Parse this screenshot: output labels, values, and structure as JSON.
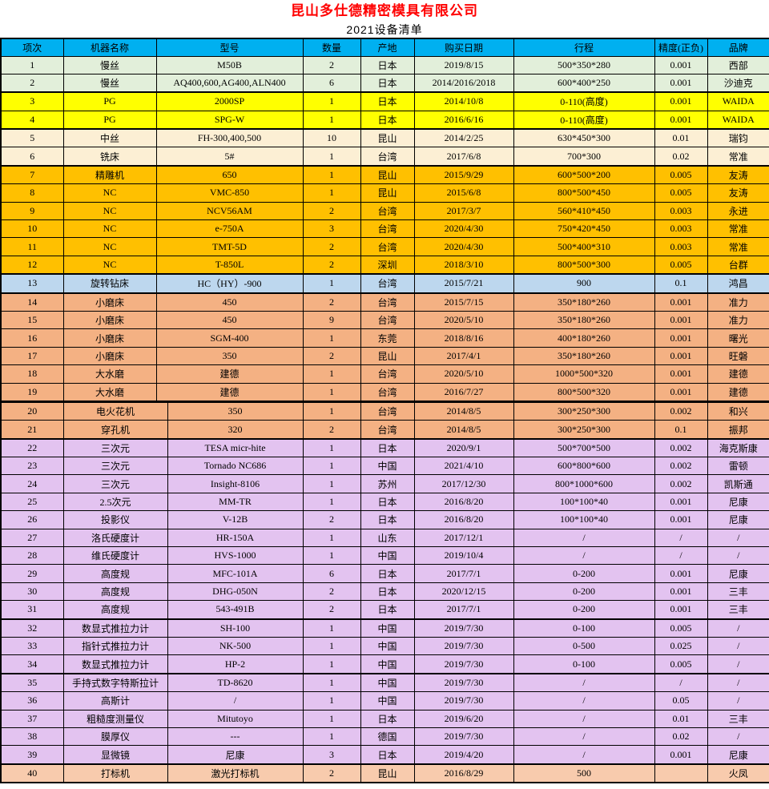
{
  "title": "昆山多仕德精密模具有限公司",
  "subtitle": "2021设备清单",
  "colors": {
    "title_red": "#FF0000",
    "header": "#00B0F0",
    "green": "#E2EFDA",
    "yellow": "#FFFF00",
    "cream": "#FCEFD4",
    "gold": "#FFC000",
    "blue": "#BDD7EE",
    "salmon": "#F4B183",
    "purple": "#E3C3F0",
    "peach": "#F8CBAD"
  },
  "table": {
    "headers": [
      "项次",
      "机器名称",
      "型号",
      "数量",
      "产地",
      "购买日期",
      "行程",
      "精度(正负)",
      "品牌"
    ],
    "rows": [
      {
        "no": "1",
        "name": "慢丝",
        "model": "M50B",
        "qty": "2",
        "origin": "日本",
        "date": "2019/8/15",
        "travel": "500*350*280",
        "precision": "0.001",
        "brand": "西部",
        "bg": "green",
        "section_start": false
      },
      {
        "no": "2",
        "name": "慢丝",
        "model": "AQ400,600,AG400,ALN400",
        "qty": "6",
        "origin": "日本",
        "date": "2014/2016/2018",
        "travel": "600*400*250",
        "precision": "0.001",
        "brand": "沙迪克",
        "bg": "green",
        "section_start": false
      },
      {
        "no": "3",
        "name": "PG",
        "model": "2000SP",
        "qty": "1",
        "origin": "日本",
        "date": "2014/10/8",
        "travel": "0-110(高度)",
        "precision": "0.001",
        "brand": "WAIDA",
        "bg": "yellow",
        "section_start": true
      },
      {
        "no": "4",
        "name": "PG",
        "model": "SPG-W",
        "qty": "1",
        "origin": "日本",
        "date": "2016/6/16",
        "travel": "0-110(高度)",
        "precision": "0.001",
        "brand": "WAIDA",
        "bg": "yellow",
        "section_start": false
      },
      {
        "no": "5",
        "name": "中丝",
        "model": "FH-300,400,500",
        "qty": "10",
        "origin": "昆山",
        "date": "2014/2/25",
        "travel": "630*450*300",
        "precision": "0.01",
        "brand": "瑞钧",
        "bg": "cream",
        "section_start": true
      },
      {
        "no": "6",
        "name": "铣床",
        "model": "5#",
        "qty": "1",
        "origin": "台湾",
        "date": "2017/6/8",
        "travel": "700*300",
        "precision": "0.02",
        "brand": "常准",
        "bg": "cream",
        "section_start": false
      },
      {
        "no": "7",
        "name": "精雕机",
        "model": "650",
        "qty": "1",
        "origin": "昆山",
        "date": "2015/9/29",
        "travel": "600*500*200",
        "precision": "0.005",
        "brand": "友涛",
        "bg": "gold",
        "section_start": true
      },
      {
        "no": "8",
        "name": "NC",
        "model": "VMC-850",
        "qty": "1",
        "origin": "昆山",
        "date": "2015/6/8",
        "travel": "800*500*450",
        "precision": "0.005",
        "brand": "友涛",
        "bg": "gold",
        "section_start": false
      },
      {
        "no": "9",
        "name": "NC",
        "model": "NCV56AM",
        "qty": "2",
        "origin": "台湾",
        "date": "2017/3/7",
        "travel": "560*410*450",
        "precision": "0.003",
        "brand": "永进",
        "bg": "gold",
        "section_start": false
      },
      {
        "no": "10",
        "name": "NC",
        "model": "e-750A",
        "qty": "3",
        "origin": "台湾",
        "date": "2020/4/30",
        "travel": "750*420*450",
        "precision": "0.003",
        "brand": "常准",
        "bg": "gold",
        "section_start": false
      },
      {
        "no": "11",
        "name": "NC",
        "model": "TMT-5D",
        "qty": "2",
        "origin": "台湾",
        "date": "2020/4/30",
        "travel": "500*400*310",
        "precision": "0.003",
        "brand": "常准",
        "bg": "gold",
        "section_start": false
      },
      {
        "no": "12",
        "name": "NC",
        "model": "T-850L",
        "qty": "2",
        "origin": "深圳",
        "date": "2018/3/10",
        "travel": "800*500*300",
        "precision": "0.005",
        "brand": "台群",
        "bg": "gold",
        "section_start": false
      },
      {
        "no": "13",
        "name": "旋转钻床",
        "model": "HC（HY）-900",
        "qty": "1",
        "origin": "台湾",
        "date": "2015/7/21",
        "travel": "900",
        "precision": "0.1",
        "brand": "鸿昌",
        "bg": "blue",
        "section_start": true
      },
      {
        "no": "14",
        "name": "小磨床",
        "model": "450",
        "qty": "2",
        "origin": "台湾",
        "date": "2015/7/15",
        "travel": "350*180*260",
        "precision": "0.001",
        "brand": "准力",
        "bg": "salmon",
        "section_start": true
      },
      {
        "no": "15",
        "name": "小磨床",
        "model": "450",
        "qty": "9",
        "origin": "台湾",
        "date": "2020/5/10",
        "travel": "350*180*260",
        "precision": "0.001",
        "brand": "准力",
        "bg": "salmon",
        "section_start": false
      },
      {
        "no": "16",
        "name": "小磨床",
        "model": "SGM-400",
        "qty": "1",
        "origin": "东莞",
        "date": "2018/8/16",
        "travel": "400*180*260",
        "precision": "0.001",
        "brand": "曙光",
        "bg": "salmon",
        "section_start": false
      },
      {
        "no": "17",
        "name": "小磨床",
        "model": "350",
        "qty": "2",
        "origin": "昆山",
        "date": "2017/4/1",
        "travel": "350*180*260",
        "precision": "0.001",
        "brand": "旺磐",
        "bg": "salmon",
        "section_start": false
      },
      {
        "no": "18",
        "name": "大水磨",
        "model": "建德",
        "qty": "1",
        "origin": "台湾",
        "date": "2020/5/10",
        "travel": "1000*500*320",
        "precision": "0.001",
        "brand": "建德",
        "bg": "salmon",
        "section_start": false
      },
      {
        "no": "19",
        "name": "大水磨",
        "model": "建德",
        "qty": "1",
        "origin": "台湾",
        "date": "2016/7/27",
        "travel": "800*500*320",
        "precision": "0.001",
        "brand": "建德",
        "bg": "salmon",
        "section_start": false
      },
      {
        "no": "20",
        "name": "电火花机",
        "model": "350",
        "qty": "1",
        "origin": "台湾",
        "date": "2014/8/5",
        "travel": "300*250*300",
        "precision": "0.002",
        "brand": "和兴",
        "bg": "salmon",
        "section_start": false
      },
      {
        "no": "21",
        "name": "穿孔机",
        "model": "320",
        "qty": "2",
        "origin": "台湾",
        "date": "2014/8/5",
        "travel": "300*250*300",
        "precision": "0.1",
        "brand": "振邦",
        "bg": "salmon",
        "section_start": false
      },
      {
        "no": "22",
        "name": "三次元",
        "model": "TESA micr-hite",
        "qty": "1",
        "origin": "日本",
        "date": "2020/9/1",
        "travel": "500*700*500",
        "precision": "0.002",
        "brand": "海克斯康",
        "bg": "purple",
        "section_start": true
      },
      {
        "no": "23",
        "name": "三次元",
        "model": "Tornado NC686",
        "qty": "1",
        "origin": "中国",
        "date": "2021/4/10",
        "travel": "600*800*600",
        "precision": "0.002",
        "brand": "雷顿",
        "bg": "purple",
        "section_start": false
      },
      {
        "no": "24",
        "name": "三次元",
        "model": "Insight-8106",
        "qty": "1",
        "origin": "苏州",
        "date": "2017/12/30",
        "travel": "800*1000*600",
        "precision": "0.002",
        "brand": "凯斯通",
        "bg": "purple",
        "section_start": false
      },
      {
        "no": "25",
        "name": "2.5次元",
        "model": "MM-TR",
        "qty": "1",
        "origin": "日本",
        "date": "2016/8/20",
        "travel": "100*100*40",
        "precision": "0.001",
        "brand": "尼康",
        "bg": "purple",
        "section_start": false
      },
      {
        "no": "26",
        "name": "投影仪",
        "model": "V-12B",
        "qty": "2",
        "origin": "日本",
        "date": "2016/8/20",
        "travel": "100*100*40",
        "precision": "0.001",
        "brand": "尼康",
        "bg": "purple",
        "section_start": false
      },
      {
        "no": "27",
        "name": "洛氏硬度计",
        "model": "HR-150A",
        "qty": "1",
        "origin": "山东",
        "date": "2017/12/1",
        "travel": "/",
        "precision": "/",
        "brand": "/",
        "bg": "purple",
        "section_start": false
      },
      {
        "no": "28",
        "name": "维氏硬度计",
        "model": "HVS-1000",
        "qty": "1",
        "origin": "中国",
        "date": "2019/10/4",
        "travel": "/",
        "precision": "/",
        "brand": "/",
        "bg": "purple",
        "section_start": false
      },
      {
        "no": "29",
        "name": "高度规",
        "model": "MFC-101A",
        "qty": "6",
        "origin": "日本",
        "date": "2017/7/1",
        "travel": "0-200",
        "precision": "0.001",
        "brand": "尼康",
        "bg": "purple",
        "section_start": false
      },
      {
        "no": "30",
        "name": "高度规",
        "model": "DHG-050N",
        "qty": "2",
        "origin": "日本",
        "date": "2020/12/15",
        "travel": "0-200",
        "precision": "0.001",
        "brand": "三丰",
        "bg": "purple",
        "section_start": false
      },
      {
        "no": "31",
        "name": "高度规",
        "model": "543-491B",
        "qty": "2",
        "origin": "日本",
        "date": "2017/7/1",
        "travel": "0-200",
        "precision": "0.001",
        "brand": "三丰",
        "bg": "purple",
        "section_start": false
      },
      {
        "no": "32",
        "name": "数显式推拉力计",
        "model": "SH-100",
        "qty": "1",
        "origin": "中国",
        "date": "2019/7/30",
        "travel": "0-100",
        "precision": "0.005",
        "brand": "/",
        "bg": "purple",
        "section_start": true
      },
      {
        "no": "33",
        "name": "指针式推拉力计",
        "model": "NK-500",
        "qty": "1",
        "origin": "中国",
        "date": "2019/7/30",
        "travel": "0-500",
        "precision": "0.025",
        "brand": "/",
        "bg": "purple",
        "section_start": false
      },
      {
        "no": "34",
        "name": "数显式推拉力计",
        "model": "HP-2",
        "qty": "1",
        "origin": "中国",
        "date": "2019/7/30",
        "travel": "0-100",
        "precision": "0.005",
        "brand": "/",
        "bg": "purple",
        "section_start": false
      },
      {
        "no": "35",
        "name": "手持式数字特斯拉计",
        "model": "TD-8620",
        "qty": "1",
        "origin": "中国",
        "date": "2019/7/30",
        "travel": "/",
        "precision": "/",
        "brand": "/",
        "bg": "purple",
        "section_start": true
      },
      {
        "no": "36",
        "name": "高斯计",
        "model": "/",
        "qty": "1",
        "origin": "中国",
        "date": "2019/7/30",
        "travel": "/",
        "precision": "0.05",
        "brand": "/",
        "bg": "purple",
        "section_start": false
      },
      {
        "no": "37",
        "name": "粗糙度测量仪",
        "model": "Mitutoyo",
        "qty": "1",
        "origin": "日本",
        "date": "2019/6/20",
        "travel": "/",
        "precision": "0.01",
        "brand": "三丰",
        "bg": "purple",
        "section_start": false
      },
      {
        "no": "38",
        "name": "膜厚仪",
        "model": "---",
        "qty": "1",
        "origin": "德国",
        "date": "2019/7/30",
        "travel": "/",
        "precision": "0.02",
        "brand": "/",
        "bg": "purple",
        "section_start": false
      },
      {
        "no": "39",
        "name": "显微镜",
        "model": "尼康",
        "qty": "3",
        "origin": "日本",
        "date": "2019/4/20",
        "travel": "/",
        "precision": "0.001",
        "brand": "尼康",
        "bg": "purple",
        "section_start": false
      },
      {
        "no": "40",
        "name": "打标机",
        "model": "激光打标机",
        "qty": "2",
        "origin": "昆山",
        "date": "2016/8/29",
        "travel": "500",
        "precision": "",
        "brand": "火凤",
        "bg": "peach",
        "section_start": true
      }
    ]
  }
}
